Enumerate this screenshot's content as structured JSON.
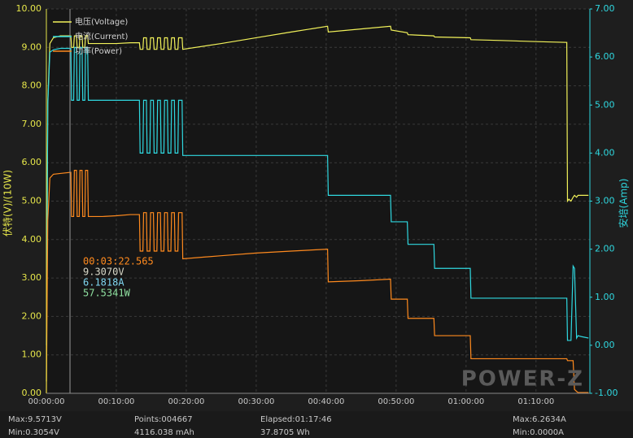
{
  "chart_data": {
    "type": "line",
    "y_label": "伏特(V)/(10W)",
    "y2_label": "安培(Amp)",
    "xlim": [
      0,
      77.7
    ],
    "ylim": [
      0,
      10
    ],
    "y2lim": [
      -1,
      7
    ],
    "grid": true,
    "legend": "top-left",
    "xticks": [
      {
        "value": 0,
        "label": "00:00:00"
      },
      {
        "value": 10,
        "label": "00:10:00"
      },
      {
        "value": 20,
        "label": "00:20:00"
      },
      {
        "value": 30,
        "label": "00:30:00"
      },
      {
        "value": 40,
        "label": "00:40:00"
      },
      {
        "value": 50,
        "label": "00:50:00"
      },
      {
        "value": 60,
        "label": "01:00:00"
      },
      {
        "value": 70,
        "label": "01:10:00"
      }
    ],
    "yticks": [
      {
        "value": 0,
        "label": "0.00"
      },
      {
        "value": 1,
        "label": "1.00"
      },
      {
        "value": 2,
        "label": "2.00"
      },
      {
        "value": 3,
        "label": "3.00"
      },
      {
        "value": 4,
        "label": "4.00"
      },
      {
        "value": 5,
        "label": "5.00"
      },
      {
        "value": 6,
        "label": "6.00"
      },
      {
        "value": 7,
        "label": "7.00"
      },
      {
        "value": 8,
        "label": "8.00"
      },
      {
        "value": 9,
        "label": "9.00"
      },
      {
        "value": 10,
        "label": "10.00"
      }
    ],
    "y2ticks": [
      {
        "value": -1,
        "label": "-1.00"
      },
      {
        "value": 0,
        "label": "0.00"
      },
      {
        "value": 1,
        "label": "1.00"
      },
      {
        "value": 2,
        "label": "2.00"
      },
      {
        "value": 3,
        "label": "3.00"
      },
      {
        "value": 4,
        "label": "4.00"
      },
      {
        "value": 5,
        "label": "5.00"
      },
      {
        "value": 6,
        "label": "6.00"
      },
      {
        "value": 7,
        "label": "7.00"
      }
    ],
    "x": [
      0,
      0.2,
      0.5,
      1,
      2,
      3.5,
      3.6,
      3.9,
      4.0,
      4.3,
      4.4,
      4.7,
      4.8,
      5.1,
      5.2,
      5.5,
      5.6,
      5.9,
      6.0,
      8,
      10,
      12,
      13.3,
      13.4,
      13.8,
      13.9,
      14.3,
      14.4,
      14.8,
      14.9,
      15.3,
      15.4,
      15.8,
      15.9,
      16.3,
      16.4,
      16.8,
      16.9,
      17.3,
      17.4,
      17.8,
      17.9,
      18.3,
      18.4,
      18.8,
      18.9,
      19.4,
      19.5,
      25,
      30,
      35,
      40.2,
      40.3,
      45,
      49.2,
      49.3,
      51.6,
      51.7,
      55.4,
      55.5,
      60.6,
      60.7,
      65,
      70,
      74.4,
      74.5,
      74.7,
      75,
      75.3,
      75.5,
      75.8,
      76,
      76.5,
      77.5
    ],
    "series": [
      {
        "name": "电压(Voltage)",
        "color": "#f2f25a",
        "axis": "y",
        "values": [
          0.31,
          7.6,
          9.1,
          9.25,
          9.3,
          9.3,
          9.0,
          9.0,
          9.3,
          9.3,
          9.0,
          9.0,
          9.3,
          9.3,
          9.0,
          9.0,
          9.3,
          9.3,
          9.1,
          9.1,
          9.1,
          9.12,
          9.12,
          8.95,
          8.95,
          9.25,
          9.25,
          8.95,
          8.95,
          9.25,
          9.25,
          8.95,
          8.95,
          9.25,
          9.25,
          8.95,
          8.95,
          9.25,
          9.25,
          8.95,
          8.95,
          9.25,
          9.25,
          8.95,
          8.95,
          9.25,
          9.25,
          8.95,
          9.1,
          9.25,
          9.4,
          9.55,
          9.4,
          9.48,
          9.55,
          9.45,
          9.38,
          9.33,
          9.3,
          9.27,
          9.25,
          9.2,
          9.18,
          9.15,
          9.13,
          5.0,
          5.05,
          5.0,
          5.1,
          5.15,
          5.1,
          5.15,
          5.15,
          5.15
        ]
      },
      {
        "name": "电流(Current)",
        "color": "#2fd8e0",
        "axis": "y2",
        "values": [
          0,
          5.0,
          6.1,
          6.15,
          6.18,
          6.18,
          5.1,
          5.1,
          6.2,
          6.2,
          5.1,
          5.1,
          6.2,
          6.2,
          5.1,
          5.1,
          6.2,
          6.2,
          5.1,
          5.1,
          5.1,
          5.1,
          5.1,
          4.0,
          4.0,
          5.1,
          5.1,
          4.0,
          4.0,
          5.1,
          5.1,
          4.0,
          4.0,
          5.1,
          5.1,
          4.0,
          4.0,
          5.1,
          5.1,
          4.0,
          4.0,
          5.1,
          5.1,
          4.0,
          4.0,
          5.1,
          5.1,
          3.95,
          3.95,
          3.95,
          3.95,
          3.95,
          3.12,
          3.12,
          3.12,
          2.57,
          2.57,
          2.1,
          2.1,
          1.6,
          1.6,
          0.98,
          0.98,
          0.98,
          0.98,
          0.1,
          0.1,
          0.1,
          1.65,
          1.6,
          0.15,
          0.2,
          0.18,
          0.15
        ]
      },
      {
        "name": "功率(Power)",
        "color": "#ff8a1e",
        "axis": "y",
        "values": [
          0,
          4.5,
          5.6,
          5.7,
          5.72,
          5.75,
          4.6,
          4.6,
          5.8,
          5.8,
          4.6,
          4.6,
          5.8,
          5.8,
          4.6,
          4.6,
          5.8,
          5.8,
          4.6,
          4.6,
          4.62,
          4.65,
          4.65,
          3.7,
          3.7,
          4.7,
          4.7,
          3.7,
          3.7,
          4.7,
          4.7,
          3.7,
          3.7,
          4.7,
          4.7,
          3.7,
          3.7,
          4.7,
          4.7,
          3.7,
          3.7,
          4.7,
          4.7,
          3.7,
          3.7,
          4.7,
          4.7,
          3.5,
          3.58,
          3.65,
          3.7,
          3.75,
          2.9,
          2.93,
          2.97,
          2.45,
          2.45,
          1.95,
          1.95,
          1.5,
          1.5,
          0.9,
          0.9,
          0.9,
          0.9,
          0.85,
          0.85,
          0.85,
          0.85,
          0.1,
          0.05,
          0.02,
          0.02,
          0.02
        ]
      }
    ],
    "cursor": {
      "x": 3.376,
      "time": "00:03:22.565",
      "voltage": "9.3070V",
      "current": "6.1818A",
      "power": "57.5341W"
    },
    "watermark": "POWER-Z"
  },
  "status_bar": {
    "max_voltage": "Max:9.5713V",
    "min_voltage": "Min:0.3054V",
    "points": "Points:004667",
    "capacity": "4116.038 mAh",
    "elapsed": "Elapsed:01:17:46",
    "energy": "37.8705 Wh",
    "max_current": "Max:6.2634A",
    "min_current": "Min:0.0000A"
  }
}
